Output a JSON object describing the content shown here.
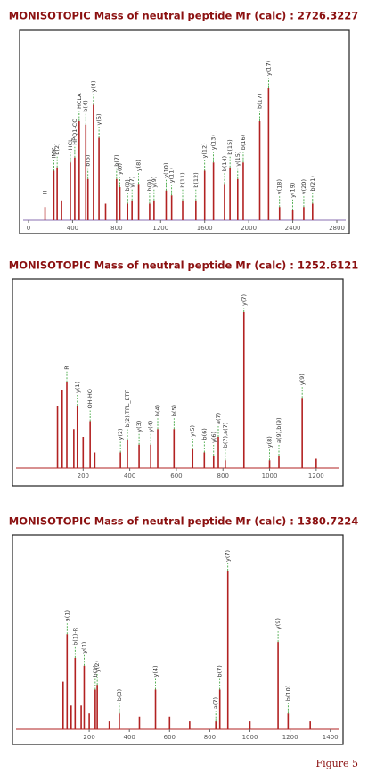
{
  "chart_data": [
    {
      "type": "bar",
      "title": "MONISOTOPIC Mass of neutral peptide Mr (calc) : 2726.3227",
      "x": [
        150,
        230,
        260,
        300,
        380,
        420,
        460,
        520,
        540,
        590,
        640,
        700,
        800,
        830,
        900,
        940,
        1000,
        1100,
        1140,
        1250,
        1300,
        1400,
        1520,
        1600,
        1680,
        1780,
        1830,
        1900,
        1950,
        2100,
        2180,
        2280,
        2400,
        2500,
        2580
      ],
      "values": [
        8,
        30,
        32,
        12,
        35,
        38,
        60,
        58,
        25,
        70,
        50,
        10,
        25,
        20,
        10,
        12,
        22,
        10,
        12,
        18,
        15,
        12,
        12,
        30,
        35,
        22,
        32,
        25,
        35,
        60,
        80,
        8,
        6,
        8,
        10
      ],
      "labels": [
        "H",
        "IMK",
        "b(2)",
        null,
        "HCL",
        "HPQ1-CO",
        "HCLA",
        "b(4)",
        "b(5)",
        "y(4)",
        "y(5)",
        null,
        "b(7)",
        "y(6)",
        "b(8)",
        "y(7)",
        "y(8)",
        "b(9)",
        "y(9)",
        "y(10)",
        "y(11)",
        "b(11)",
        "b(12)",
        "y(12)",
        "y(13)",
        "b(14)",
        "b(15)",
        "y(15)",
        "b(16)",
        "b(17)",
        "y(17)",
        "y(18)",
        "y(19)",
        "y(20)",
        "b(21)"
      ],
      "xlim": [
        0,
        2800
      ],
      "xticks": [
        0,
        400,
        800,
        1200,
        1600,
        2000,
        2400,
        2800
      ],
      "ylim": [
        0,
        100
      ],
      "color": "#b22222",
      "axis_color": "#8a6fb0",
      "label_line_color": "#2e9e2e"
    },
    {
      "type": "bar",
      "title": "MONISOTOPIC Mass of neutral peptide Mr (calc) : 1252.6121",
      "x": [
        90,
        110,
        130,
        160,
        175,
        200,
        230,
        250,
        360,
        390,
        440,
        490,
        520,
        590,
        670,
        720,
        760,
        780,
        810,
        890,
        1000,
        1040,
        1140,
        1200
      ],
      "values": [
        40,
        50,
        55,
        25,
        40,
        20,
        30,
        10,
        10,
        18,
        15,
        15,
        25,
        25,
        12,
        10,
        8,
        20,
        5,
        100,
        5,
        8,
        45,
        6
      ],
      "labels": [
        null,
        null,
        "R",
        null,
        "y(1)",
        null,
        "OH-HO",
        null,
        "y(2)",
        "b(2),TPL_ETF",
        "y(3)",
        "y(4)",
        "b(4)",
        "b(5)",
        "y(5)",
        "b(6)",
        "y(6)",
        "a(7)",
        "b(7),a(7)",
        "y(7)",
        "y(8)",
        "a(9),b(9)",
        "y(9)",
        null
      ],
      "xlim": [
        0,
        1300
      ],
      "xticks": [
        200,
        400,
        600,
        800,
        1000,
        1200
      ],
      "ylim": [
        0,
        100
      ],
      "color": "#b22222",
      "axis_color": "#b22222",
      "label_line_color": "#2e9e2e"
    },
    {
      "type": "bar",
      "title": "MONISOTOPIC Mass of neutral peptide Mr (calc) : 1380.7224",
      "x": [
        70,
        90,
        110,
        130,
        160,
        175,
        200,
        230,
        240,
        300,
        350,
        450,
        530,
        600,
        700,
        830,
        850,
        890,
        1000,
        1140,
        1190,
        1300
      ],
      "values": [
        30,
        60,
        15,
        45,
        15,
        40,
        10,
        25,
        28,
        5,
        10,
        8,
        25,
        8,
        5,
        5,
        25,
        100,
        5,
        55,
        10,
        5
      ],
      "labels": [
        null,
        "a(1)",
        null,
        "b(1)-R",
        null,
        "y(1)",
        null,
        "b(2)",
        "y(2)",
        null,
        "b(3)",
        null,
        "y(4)",
        null,
        null,
        "a(7)",
        "b(7)",
        "y(7)",
        null,
        "y(9)",
        "b(10)",
        null
      ],
      "xlim": [
        0,
        1450
      ],
      "xticks": [
        200,
        400,
        600,
        800,
        1000,
        1200,
        1400
      ],
      "ylim": [
        0,
        100
      ],
      "color": "#b22222",
      "axis_color": "#b22222",
      "label_line_color": "#2e9e2e"
    }
  ],
  "caption": "Figure 5"
}
